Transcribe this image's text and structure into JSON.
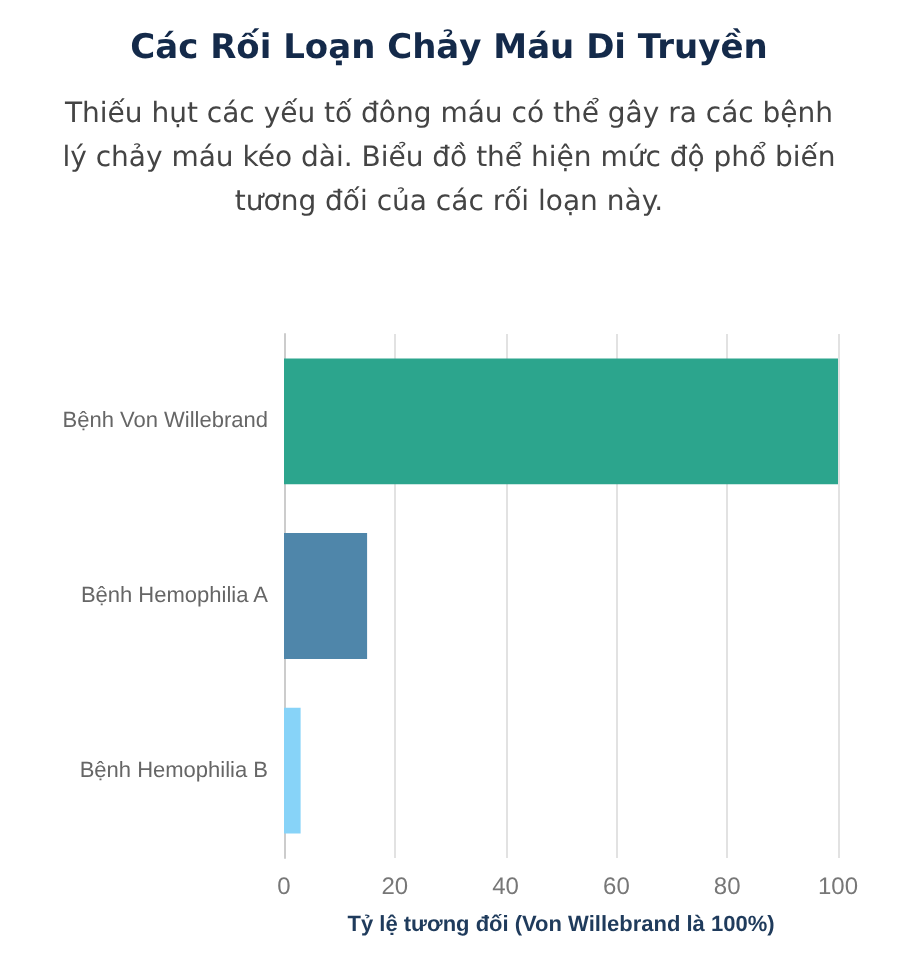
{
  "chart_data": {
    "type": "bar",
    "orientation": "horizontal",
    "title": "Các Rối Loạn Chảy Máu Di Truyền",
    "subtitle": "Thiếu hụt các yếu tố đông máu có thể gây ra các bệnh lý chảy máu kéo dài. Biểu đồ thể hiện mức độ phổ biến tương đối của các rối loạn này.",
    "xlabel": "Tỷ lệ tương đối (Von Willebrand là 100%)",
    "categories": [
      "Bệnh Von Willebrand",
      "Bệnh Hemophilia A",
      "Bệnh Hemophilia B"
    ],
    "values": [
      100,
      15,
      3
    ],
    "colors": [
      "#2ca58d",
      "#4f86aa",
      "#87d3f8"
    ],
    "xlim": [
      0,
      100
    ],
    "xticks": [
      0,
      20,
      40,
      60,
      80,
      100
    ],
    "grid": "x"
  }
}
